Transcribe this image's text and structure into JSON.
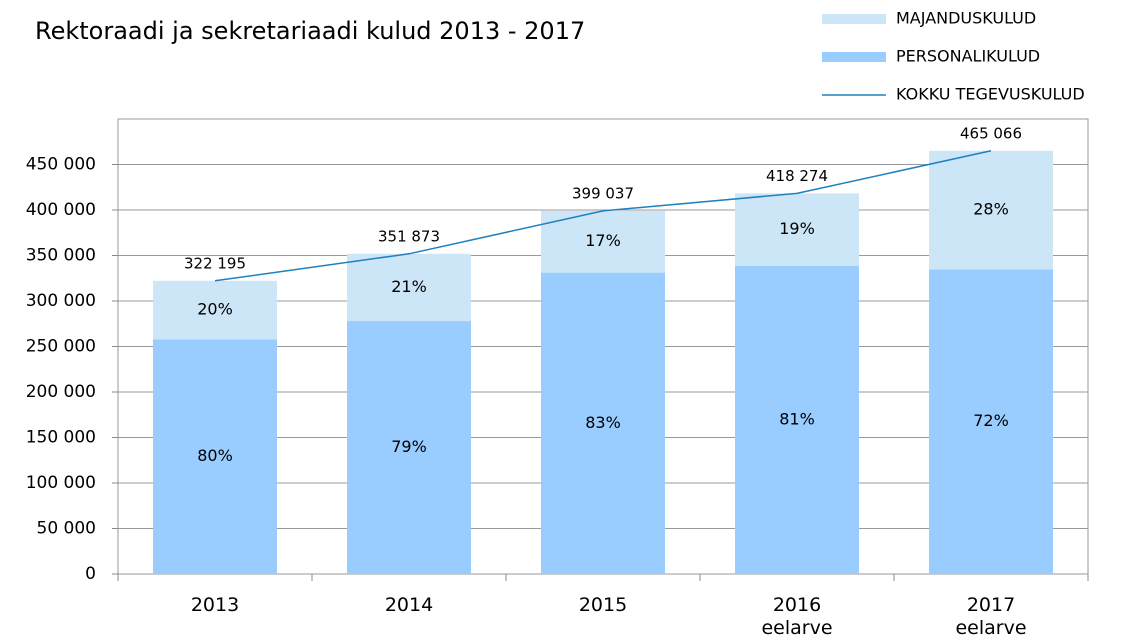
{
  "chart_data": {
    "type": "stacked-bar-line",
    "title": "Rektoraadi ja sekretariaadi kulud 2013 - 2017",
    "categories": [
      "2013",
      "2014",
      "2015",
      "2016 eelarve",
      "2017 eelarve"
    ],
    "series": [
      {
        "name": "PERSONALIKULUD",
        "color": "#99ccff",
        "kind": "bar",
        "values": [
          257756,
          277980,
          331201,
          338802,
          334848
        ],
        "share_labels": [
          "80%",
          "79%",
          "83%",
          "81%",
          "72%"
        ]
      },
      {
        "name": "MAJANDUSKULUD",
        "color": "#cde6f7",
        "kind": "bar",
        "values": [
          64439,
          73893,
          67836,
          79472,
          130218
        ],
        "share_labels": [
          "20%",
          "21%",
          "17%",
          "19%",
          "28%"
        ]
      },
      {
        "name": "KOKKU TEGEVUSKULUD",
        "color": "#1f80c0",
        "kind": "line",
        "values": [
          322195,
          351873,
          399037,
          418274,
          465066
        ],
        "value_labels": [
          "322 195",
          "351 873",
          "399 037",
          "418 274",
          "465 066"
        ]
      }
    ],
    "ylim": [
      0,
      500000
    ],
    "yticks": [
      0,
      {
        "value": 50000,
        "label": "50 000"
      },
      {
        "value": 100000,
        "label": "100 000"
      },
      {
        "value": 150000,
        "label": "150 000"
      },
      {
        "value": 200000,
        "label": "200 000"
      },
      {
        "value": 250000,
        "label": "250 000"
      },
      {
        "value": 300000,
        "label": "300 000"
      },
      {
        "value": 350000,
        "label": "350 000"
      },
      {
        "value": 400000,
        "label": "400 000"
      },
      {
        "value": 450000,
        "label": "450 000"
      }
    ],
    "grid": true
  }
}
